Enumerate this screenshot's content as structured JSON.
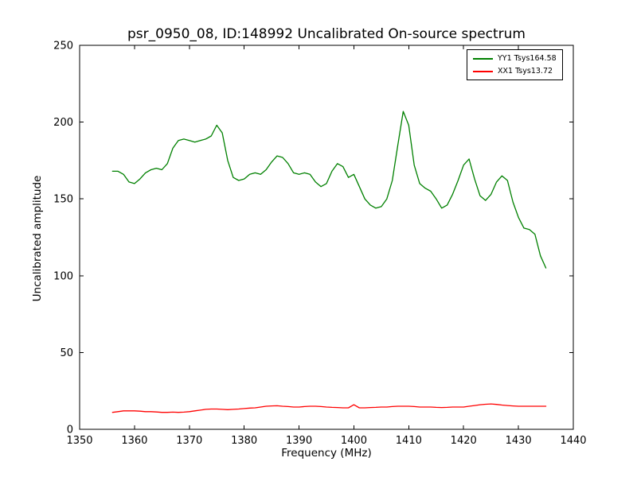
{
  "chart_data": {
    "type": "line",
    "title": "psr_0950_08, ID:148992 Uncalibrated On-source spectrum",
    "xlabel": "Frequency (MHz)",
    "ylabel": "Uncalibrated amplitude",
    "xlim": [
      1350,
      1440
    ],
    "ylim": [
      0,
      250
    ],
    "xticks": [
      1350,
      1360,
      1370,
      1380,
      1390,
      1400,
      1410,
      1420,
      1430,
      1440
    ],
    "yticks": [
      0,
      50,
      100,
      150,
      200,
      250
    ],
    "grid": false,
    "legend_position": "upper right",
    "background_color": "#ffffff",
    "axes_color": "#000000",
    "series": [
      {
        "name": "YY1 Tsys164.58",
        "color": "#008000",
        "x": [
          1356,
          1357,
          1358,
          1359,
          1360,
          1361,
          1362,
          1363,
          1364,
          1365,
          1366,
          1367,
          1368,
          1369,
          1370,
          1371,
          1372,
          1373,
          1374,
          1375,
          1376,
          1377,
          1378,
          1379,
          1380,
          1381,
          1382,
          1383,
          1384,
          1385,
          1386,
          1387,
          1388,
          1389,
          1390,
          1391,
          1392,
          1393,
          1394,
          1395,
          1396,
          1397,
          1398,
          1399,
          1400,
          1401,
          1402,
          1403,
          1404,
          1405,
          1406,
          1407,
          1408,
          1409,
          1410,
          1411,
          1412,
          1413,
          1414,
          1415,
          1416,
          1417,
          1418,
          1419,
          1420,
          1421,
          1422,
          1423,
          1424,
          1425,
          1426,
          1427,
          1428,
          1429,
          1430,
          1431,
          1432,
          1433,
          1434,
          1435
        ],
        "y": [
          168,
          168,
          166,
          161,
          160,
          163,
          167,
          169,
          170,
          169,
          173,
          183,
          188,
          189,
          188,
          187,
          188,
          189,
          191,
          198,
          193,
          175,
          164,
          162,
          163,
          166,
          167,
          166,
          169,
          174,
          178,
          177,
          173,
          167,
          166,
          167,
          166,
          161,
          158,
          160,
          168,
          173,
          171,
          164,
          166,
          158,
          150,
          146,
          144,
          145,
          150,
          162,
          185,
          207,
          198,
          172,
          160,
          157,
          155,
          150,
          144,
          146,
          153,
          162,
          172,
          176,
          163,
          152,
          149,
          153,
          161,
          165,
          162,
          148,
          138,
          131,
          130,
          127,
          113,
          105
        ]
      },
      {
        "name": "XX1 Tsys13.72",
        "color": "#ff0000",
        "x": [
          1356,
          1357,
          1358,
          1359,
          1360,
          1361,
          1362,
          1363,
          1364,
          1365,
          1366,
          1367,
          1368,
          1369,
          1370,
          1371,
          1372,
          1373,
          1374,
          1375,
          1376,
          1377,
          1378,
          1379,
          1380,
          1381,
          1382,
          1383,
          1384,
          1385,
          1386,
          1387,
          1388,
          1389,
          1390,
          1391,
          1392,
          1393,
          1394,
          1395,
          1396,
          1397,
          1398,
          1399,
          1400,
          1401,
          1402,
          1403,
          1404,
          1405,
          1406,
          1407,
          1408,
          1409,
          1410,
          1411,
          1412,
          1413,
          1414,
          1415,
          1416,
          1417,
          1418,
          1419,
          1420,
          1421,
          1422,
          1423,
          1424,
          1425,
          1426,
          1427,
          1428,
          1429,
          1430,
          1431,
          1432,
          1433,
          1434,
          1435
        ],
        "y": [
          11,
          11.5,
          12,
          12,
          12,
          11.8,
          11.5,
          11.5,
          11.3,
          11,
          11,
          11.2,
          11,
          11.2,
          11.5,
          12,
          12.5,
          13,
          13.2,
          13.2,
          13,
          12.8,
          13,
          13.2,
          13.5,
          13.8,
          14,
          14.5,
          15,
          15.2,
          15.3,
          15,
          14.8,
          14.5,
          14.5,
          14.8,
          15,
          15,
          14.8,
          14.5,
          14.3,
          14.2,
          14,
          14,
          16,
          14,
          14,
          14.2,
          14.3,
          14.5,
          14.5,
          14.8,
          15,
          15,
          15,
          14.8,
          14.5,
          14.5,
          14.5,
          14.3,
          14.2,
          14.3,
          14.5,
          14.5,
          14.5,
          15,
          15.5,
          16,
          16.3,
          16.5,
          16.2,
          15.8,
          15.5,
          15.2,
          15,
          15,
          15,
          15,
          15,
          15
        ]
      }
    ]
  }
}
